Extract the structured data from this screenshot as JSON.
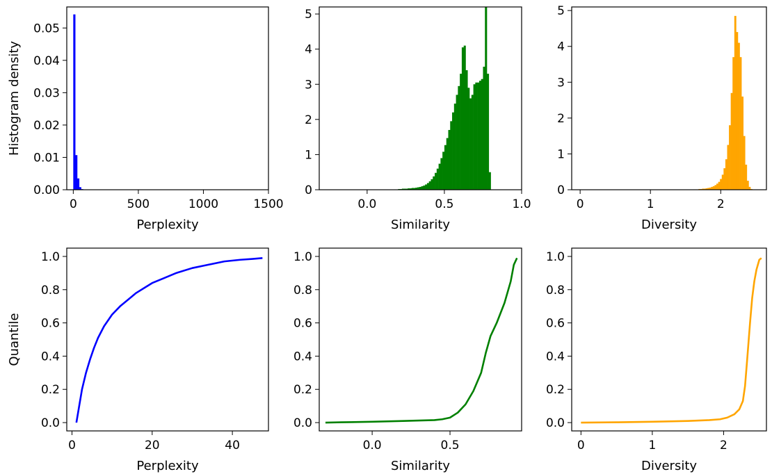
{
  "chart_data": [
    {
      "type": "histogram",
      "xlabel": "Perplexity",
      "ylabel": "Histogram density",
      "color": "#0000ff",
      "xlim": [
        -50,
        1500
      ],
      "ylim": [
        0,
        0.0565
      ],
      "xticks": [
        0,
        500,
        1000,
        1500
      ],
      "xtick_labels": [
        "0",
        "500",
        "1000",
        "1500"
      ],
      "yticks": [
        0,
        0.01,
        0.02,
        0.03,
        0.04,
        0.05
      ],
      "ytick_labels": [
        "0.00",
        "0.01",
        "0.02",
        "0.03",
        "0.04",
        "0.05"
      ],
      "bins": [
        {
          "x0": 0,
          "x1": 15,
          "y": 0.0542
        },
        {
          "x0": 15,
          "x1": 30,
          "y": 0.0107
        },
        {
          "x0": 30,
          "x1": 45,
          "y": 0.0035
        },
        {
          "x0": 45,
          "x1": 60,
          "y": 0.0008
        },
        {
          "x0": 60,
          "x1": 75,
          "y": 0.0002
        }
      ]
    },
    {
      "type": "histogram",
      "xlabel": "Similarity",
      "ylabel": "",
      "color": "#008000",
      "xlim": [
        -0.31,
        1.0
      ],
      "ylim": [
        0,
        5.2
      ],
      "xticks": [
        0.0,
        0.5,
        1.0
      ],
      "xtick_labels": [
        "0.0",
        "0.5",
        "1.0"
      ],
      "yticks": [
        0,
        1,
        2,
        3,
        4,
        5
      ],
      "ytick_labels": [
        "0",
        "1",
        "2",
        "3",
        "4",
        "5"
      ],
      "bin_start": -0.25,
      "bin_width": 0.0125,
      "bin_values": [
        0,
        0,
        0,
        0,
        0,
        0,
        0,
        0,
        0,
        0,
        0,
        0,
        0,
        0,
        0,
        0,
        0,
        0,
        0,
        0,
        0,
        0,
        0,
        0,
        0,
        0,
        0,
        0,
        0,
        0,
        0,
        0,
        0,
        0,
        0.01,
        0.01,
        0.02,
        0.02,
        0.03,
        0.03,
        0.03,
        0.04,
        0.04,
        0.05,
        0.05,
        0.06,
        0.07,
        0.08,
        0.1,
        0.12,
        0.15,
        0.19,
        0.24,
        0.3,
        0.38,
        0.48,
        0.6,
        0.74,
        0.9,
        1.08,
        1.27,
        1.47,
        1.7,
        1.95,
        2.2,
        2.45,
        2.7,
        2.95,
        3.3,
        4.05,
        4.1,
        3.4,
        2.9,
        2.6,
        2.7,
        3.0,
        3.05,
        3.05,
        3.1,
        3.15,
        3.5,
        5.2,
        3.3,
        0.5
      ]
    },
    {
      "type": "histogram",
      "xlabel": "Diversity",
      "ylabel": "",
      "color": "#ffa500",
      "xlim": [
        -0.12,
        2.65
      ],
      "ylim": [
        0,
        5.1
      ],
      "xticks": [
        0,
        1,
        2
      ],
      "xtick_labels": [
        "0",
        "1",
        "2"
      ],
      "yticks": [
        0,
        1,
        2,
        3,
        4,
        5
      ],
      "ytick_labels": [
        "0",
        "1",
        "2",
        "3",
        "4",
        "5"
      ],
      "bin_start": 0,
      "bin_width": 0.0255,
      "bin_values": [
        0,
        0,
        0,
        0,
        0,
        0,
        0,
        0,
        0,
        0,
        0,
        0,
        0,
        0,
        0,
        0,
        0,
        0,
        0,
        0,
        0,
        0,
        0,
        0,
        0,
        0,
        0,
        0,
        0,
        0,
        0,
        0,
        0,
        0,
        0,
        0,
        0,
        0,
        0,
        0,
        0,
        0,
        0,
        0,
        0,
        0,
        0,
        0,
        0,
        0,
        0,
        0,
        0,
        0,
        0,
        0,
        0,
        0,
        0,
        0,
        0,
        0,
        0,
        0.01,
        0.01,
        0.01,
        0.02,
        0.02,
        0.03,
        0.03,
        0.04,
        0.05,
        0.06,
        0.08,
        0.1,
        0.13,
        0.17,
        0.22,
        0.3,
        0.42,
        0.6,
        0.85,
        1.25,
        1.8,
        2.7,
        3.7,
        4.85,
        4.4,
        4.1,
        3.7,
        2.6,
        1.5,
        0.7,
        0.25,
        0.08,
        0.02
      ]
    },
    {
      "type": "line",
      "xlabel": "Perplexity",
      "ylabel": "Quantile",
      "color": "#0000ff",
      "xlim": [
        -1.3,
        49
      ],
      "ylim": [
        -0.05,
        1.05
      ],
      "xticks": [
        0,
        20,
        40
      ],
      "xtick_labels": [
        "0",
        "20",
        "40"
      ],
      "yticks": [
        0,
        0.2,
        0.4,
        0.6,
        0.8,
        1.0
      ],
      "ytick_labels": [
        "0.0",
        "0.2",
        "0.4",
        "0.6",
        "0.8",
        "1.0"
      ],
      "x": [
        1.1,
        1.8,
        2.5,
        3.5,
        4.5,
        5.5,
        6.5,
        8,
        10,
        12,
        14,
        16,
        18,
        20,
        23,
        26,
        30,
        34,
        38,
        42,
        45,
        47.5
      ],
      "y": [
        0,
        0.1,
        0.2,
        0.3,
        0.38,
        0.45,
        0.51,
        0.58,
        0.65,
        0.7,
        0.74,
        0.78,
        0.81,
        0.84,
        0.87,
        0.9,
        0.93,
        0.95,
        0.97,
        0.98,
        0.985,
        0.99
      ]
    },
    {
      "type": "line",
      "xlabel": "Similarity",
      "ylabel": "",
      "color": "#008000",
      "xlim": [
        -0.34,
        0.96
      ],
      "ylim": [
        -0.05,
        1.05
      ],
      "xticks": [
        0.0,
        0.5
      ],
      "xtick_labels": [
        "0.0",
        "0.5"
      ],
      "yticks": [
        0,
        0.2,
        0.4,
        0.6,
        0.8,
        1.0
      ],
      "ytick_labels": [
        "0.0",
        "0.2",
        "0.4",
        "0.6",
        "0.8",
        "1.0"
      ],
      "x": [
        -0.3,
        -0.2,
        0.0,
        0.2,
        0.4,
        0.45,
        0.5,
        0.55,
        0.6,
        0.65,
        0.7,
        0.73,
        0.76,
        0.8,
        0.85,
        0.89,
        0.91,
        0.93
      ],
      "y": [
        0,
        0.002,
        0.005,
        0.01,
        0.015,
        0.02,
        0.03,
        0.06,
        0.11,
        0.19,
        0.3,
        0.42,
        0.52,
        0.6,
        0.72,
        0.85,
        0.95,
        0.99
      ]
    },
    {
      "type": "line",
      "xlabel": "Diversity",
      "ylabel": "",
      "color": "#ffa500",
      "xlim": [
        -0.13,
        2.6
      ],
      "ylim": [
        -0.05,
        1.05
      ],
      "xticks": [
        0,
        1,
        2
      ],
      "xtick_labels": [
        "0",
        "1",
        "2"
      ],
      "yticks": [
        0,
        0.2,
        0.4,
        0.6,
        0.8,
        1.0
      ],
      "ytick_labels": [
        "0.0",
        "0.2",
        "0.4",
        "0.6",
        "0.8",
        "1.0"
      ],
      "x": [
        0,
        0.5,
        1.0,
        1.5,
        1.8,
        1.95,
        2.05,
        2.15,
        2.22,
        2.27,
        2.3,
        2.33,
        2.37,
        2.4,
        2.43,
        2.46,
        2.5,
        2.53
      ],
      "y": [
        0,
        0.002,
        0.005,
        0.01,
        0.015,
        0.02,
        0.03,
        0.05,
        0.08,
        0.13,
        0.22,
        0.38,
        0.6,
        0.75,
        0.85,
        0.92,
        0.98,
        0.99
      ]
    }
  ]
}
